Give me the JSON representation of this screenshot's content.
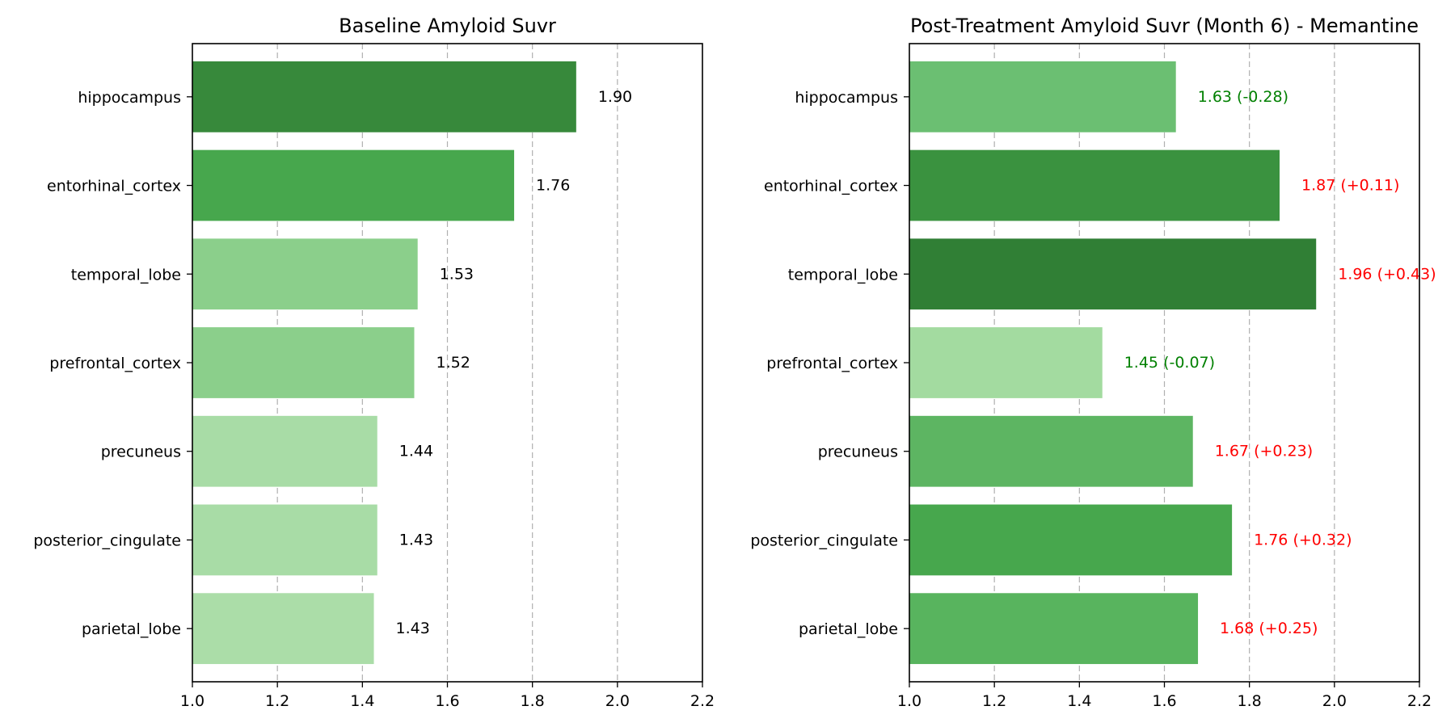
{
  "chart_data": [
    {
      "type": "bar",
      "orientation": "horizontal",
      "title": "Baseline Amyloid Suvr",
      "xlabel": "",
      "ylabel": "",
      "xlim": [
        1.0,
        2.2
      ],
      "xticks": [
        "1.0",
        "1.2",
        "1.4",
        "1.6",
        "1.8",
        "2.0",
        "2.2"
      ],
      "grid": "x, dashed",
      "categories": [
        "hippocampus",
        "entorhinal_cortex",
        "temporal_lobe",
        "prefrontal_cortex",
        "precuneus",
        "posterior_cingulate",
        "parietal_lobe"
      ],
      "values": [
        1.903,
        1.757,
        1.53,
        1.522,
        1.435,
        1.435,
        1.427
      ],
      "value_labels": [
        "1.90",
        "1.76",
        "1.53",
        "1.52",
        "1.44",
        "1.43",
        "1.43"
      ],
      "label_colors": [
        "#000000",
        "#000000",
        "#000000",
        "#000000",
        "#000000",
        "#000000",
        "#000000"
      ],
      "bar_colors": [
        "#37893b",
        "#47a74d",
        "#8bcf8b",
        "#8bcf8b",
        "#a8dca6",
        "#a8dca6",
        "#abdda8"
      ]
    },
    {
      "type": "bar",
      "orientation": "horizontal",
      "title": "Post-Treatment Amyloid Suvr (Month 6) - Memantine",
      "xlabel": "",
      "ylabel": "",
      "xlim": [
        1.0,
        2.2
      ],
      "xticks": [
        "1.0",
        "1.2",
        "1.4",
        "1.6",
        "1.8",
        "2.0",
        "2.2"
      ],
      "grid": "x, dashed",
      "categories": [
        "hippocampus",
        "entorhinal_cortex",
        "temporal_lobe",
        "prefrontal_cortex",
        "precuneus",
        "posterior_cingulate",
        "parietal_lobe"
      ],
      "values": [
        1.627,
        1.871,
        1.957,
        1.454,
        1.667,
        1.759,
        1.679
      ],
      "value_labels": [
        "1.63 (-0.28)",
        "1.87 (+0.11)",
        "1.96 (+0.43)",
        "1.45 (-0.07)",
        "1.67 (+0.23)",
        "1.76 (+0.32)",
        "1.68 (+0.25)"
      ],
      "label_colors": [
        "#008000",
        "#ff0000",
        "#ff0000",
        "#008000",
        "#ff0000",
        "#ff0000",
        "#ff0000"
      ],
      "bar_colors": [
        "#6bbf72",
        "#3a923f",
        "#307f35",
        "#a3dba0",
        "#5db562",
        "#47a74d",
        "#58b45e"
      ]
    }
  ]
}
